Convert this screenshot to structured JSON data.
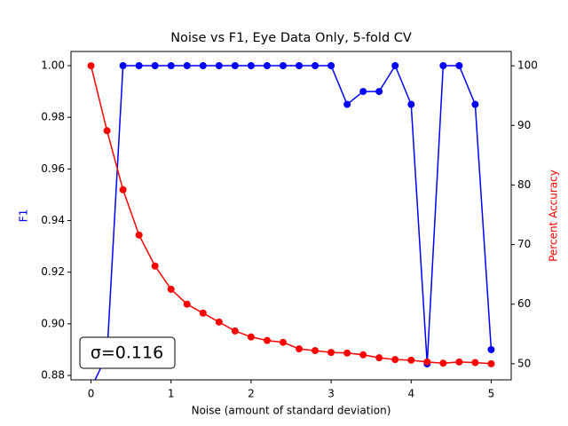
{
  "chart_data": {
    "type": "line",
    "title": "Noise vs F1, Eye Data Only, 5-fold CV",
    "x_label": "Noise (amount of standard deviation)",
    "y_label": "F1",
    "y2_label": "Percent Accuracy",
    "annotation": "σ=0.116",
    "x": [
      0,
      0.2,
      0.4,
      0.6,
      0.8,
      1.0,
      1.2,
      1.4,
      1.6,
      1.8,
      2.0,
      2.2,
      2.4,
      2.6,
      2.8,
      3.0,
      3.2,
      3.4,
      3.6,
      3.8,
      4.0,
      4.2,
      4.4,
      4.6,
      4.8,
      5.0
    ],
    "series": [
      {
        "name": "F1",
        "color": "#0000ff",
        "values": [
          0.875,
          0.888,
          1.0,
          1.0,
          1.0,
          1.0,
          1.0,
          1.0,
          1.0,
          1.0,
          1.0,
          1.0,
          1.0,
          1.0,
          1.0,
          1.0,
          0.985,
          0.99,
          0.99,
          1.0,
          0.985,
          0.8845,
          1.0,
          1.0,
          0.985,
          0.89
        ]
      },
      {
        "name": "Percent Accuracy",
        "color": "#ff0000",
        "axis": "y2",
        "values": [
          100,
          89.1,
          79.2,
          71.6,
          66.4,
          62.5,
          60.0,
          58.5,
          57.0,
          55.5,
          54.5,
          53.9,
          53.6,
          52.5,
          52.2,
          51.9,
          51.8,
          51.5,
          51.0,
          50.7,
          50.6,
          50.3,
          50.1,
          50.3,
          50.2,
          50.0
        ]
      }
    ],
    "xlim": [
      -0.25,
      5.25
    ],
    "xticks": [
      0,
      1,
      2,
      3,
      4,
      5
    ],
    "ylim": [
      0.8783,
      1.0055
    ],
    "yticks": [
      0.88,
      {
        "value": 0.9,
        "label": "0.90"
      },
      0.92,
      0.94,
      0.96,
      0.98,
      {
        "value": 1.0,
        "label": "1.00"
      }
    ],
    "y2lim": [
      47.3,
      102.4
    ],
    "y2ticks": [
      50,
      60,
      70,
      80,
      90,
      100
    ]
  }
}
